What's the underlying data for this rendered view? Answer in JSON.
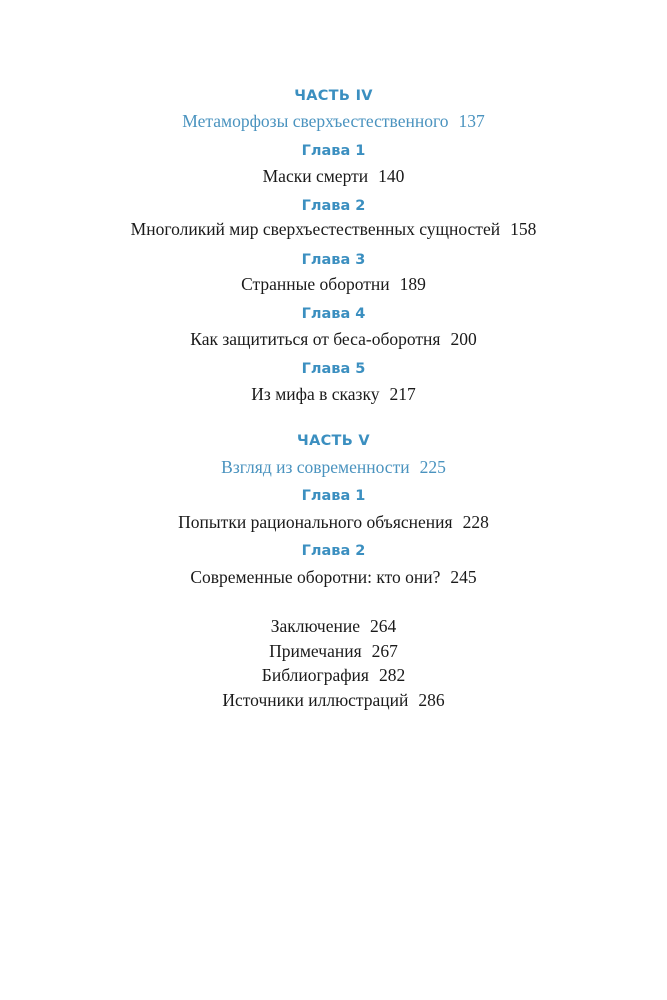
{
  "accent_color": "#3b8fc0",
  "parts": [
    {
      "label": "ЧАСТЬ IV",
      "title": "Метаморфозы сверхъестественного",
      "page": "137",
      "chapters": [
        {
          "label": "Глава 1",
          "title": "Маски смерти",
          "page": "140"
        },
        {
          "label": "Глава 2",
          "title": "Многоликий мир сверхъестественных сущностей",
          "page": "158"
        },
        {
          "label": "Глава 3",
          "title": "Странные оборотни",
          "page": "189"
        },
        {
          "label": "Глава 4",
          "title": "Как защититься от беса-оборотня",
          "page": "200"
        },
        {
          "label": "Глава 5",
          "title": "Из мифа в сказку",
          "page": "217"
        }
      ]
    },
    {
      "label": "ЧАСТЬ V",
      "title": "Взгляд из современности",
      "page": "225",
      "chapters": [
        {
          "label": "Глава 1",
          "title": "Попытки рационального объяснения",
          "page": "228"
        },
        {
          "label": "Глава 2",
          "title": "Современные оборотни: кто они?",
          "page": "245"
        }
      ]
    }
  ],
  "back_matter": [
    {
      "title": "Заключение",
      "page": "264"
    },
    {
      "title": "Примечания",
      "page": "267"
    },
    {
      "title": "Библиография",
      "page": "282"
    },
    {
      "title": "Источники иллюстраций",
      "page": "286"
    }
  ]
}
